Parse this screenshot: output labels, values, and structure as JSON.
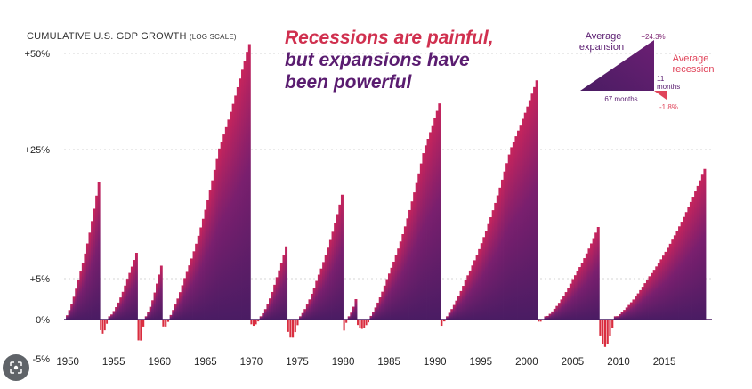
{
  "header": {
    "title_main": "CUMULATIVE U.S. GDP GROWTH",
    "title_small": "(LOG SCALE)",
    "headline_line1": "Recessions are painful,",
    "headline_line2": "but expansions have",
    "headline_line3": "been powerful"
  },
  "legend_box": {
    "expansion_label_line1": "Average",
    "expansion_label_line2": "expansion",
    "expansion_value": "+24.3%",
    "expansion_duration": "67 months",
    "recession_label_line1": "Average",
    "recession_label_line2": "recession",
    "recession_duration_line1": "11",
    "recession_duration_line2": "months",
    "recession_value": "-1.8%"
  },
  "overlay": {
    "lens_icon": "lens-icon"
  },
  "colors": {
    "expansion_dark": "#4a1c63",
    "expansion_mid": "#7a1f6e",
    "expansion_peak": "#c8245c",
    "recession": "#d92d3f",
    "headline_red": "#d0304f",
    "headline_purple": "#5a1c70",
    "legend_recession": "#e0445a"
  },
  "chart_data": {
    "type": "bar",
    "scale": "log",
    "grid": true,
    "y_ticks": [
      "+50%",
      "+25%",
      "+5%",
      "0%",
      "-5%"
    ],
    "y_tick_values": [
      50,
      25,
      5,
      0,
      -5
    ],
    "x_ticks": [
      "1950",
      "1955",
      "1960",
      "1965",
      "1970",
      "1975",
      "1980",
      "1985",
      "1990",
      "1995",
      "2000",
      "2005",
      "2010",
      "2015"
    ],
    "x_tick_values": [
      1950,
      1955,
      1960,
      1965,
      1970,
      1975,
      1980,
      1985,
      1990,
      1995,
      2000,
      2005,
      2010,
      2015
    ],
    "xlim": [
      1949.6,
      2019.5
    ],
    "series": [
      {
        "kind": "expansion",
        "start": 1949.8,
        "end": 1953.5,
        "peak": 20
      },
      {
        "kind": "recession",
        "start": 1953.5,
        "end": 1954.4,
        "trough": -1.8
      },
      {
        "kind": "expansion",
        "start": 1954.4,
        "end": 1957.6,
        "peak": 9
      },
      {
        "kind": "recession",
        "start": 1957.6,
        "end": 1958.4,
        "trough": -3.0
      },
      {
        "kind": "expansion",
        "start": 1958.4,
        "end": 1960.3,
        "peak": 7
      },
      {
        "kind": "recession",
        "start": 1960.3,
        "end": 1961.1,
        "trough": -1.0
      },
      {
        "kind": "expansion",
        "start": 1961.1,
        "end": 1969.9,
        "peak": 53
      },
      {
        "kind": "recession",
        "start": 1969.9,
        "end": 1970.9,
        "trough": -0.8
      },
      {
        "kind": "expansion",
        "start": 1970.9,
        "end": 1973.9,
        "peak": 10
      },
      {
        "kind": "recession",
        "start": 1973.9,
        "end": 1975.2,
        "trough": -2.4
      },
      {
        "kind": "expansion",
        "start": 1975.2,
        "end": 1980.0,
        "peak": 18
      },
      {
        "kind": "recession",
        "start": 1980.0,
        "end": 1980.5,
        "trough": -1.4
      },
      {
        "kind": "expansion",
        "start": 1980.5,
        "end": 1981.5,
        "peak": 2.5
      },
      {
        "kind": "recession",
        "start": 1981.5,
        "end": 1982.9,
        "trough": -1.2
      },
      {
        "kind": "expansion",
        "start": 1982.9,
        "end": 1990.6,
        "peak": 37
      },
      {
        "kind": "recession",
        "start": 1990.6,
        "end": 1991.2,
        "trough": -0.8
      },
      {
        "kind": "expansion",
        "start": 1991.2,
        "end": 2001.2,
        "peak": 43
      },
      {
        "kind": "recession",
        "start": 2001.2,
        "end": 2001.9,
        "trough": -0.3
      },
      {
        "kind": "expansion",
        "start": 2001.9,
        "end": 2007.9,
        "peak": 13
      },
      {
        "kind": "recession",
        "start": 2007.9,
        "end": 2009.5,
        "trough": -3.5
      },
      {
        "kind": "expansion",
        "start": 2009.5,
        "end": 2019.5,
        "peak": 22
      }
    ]
  }
}
